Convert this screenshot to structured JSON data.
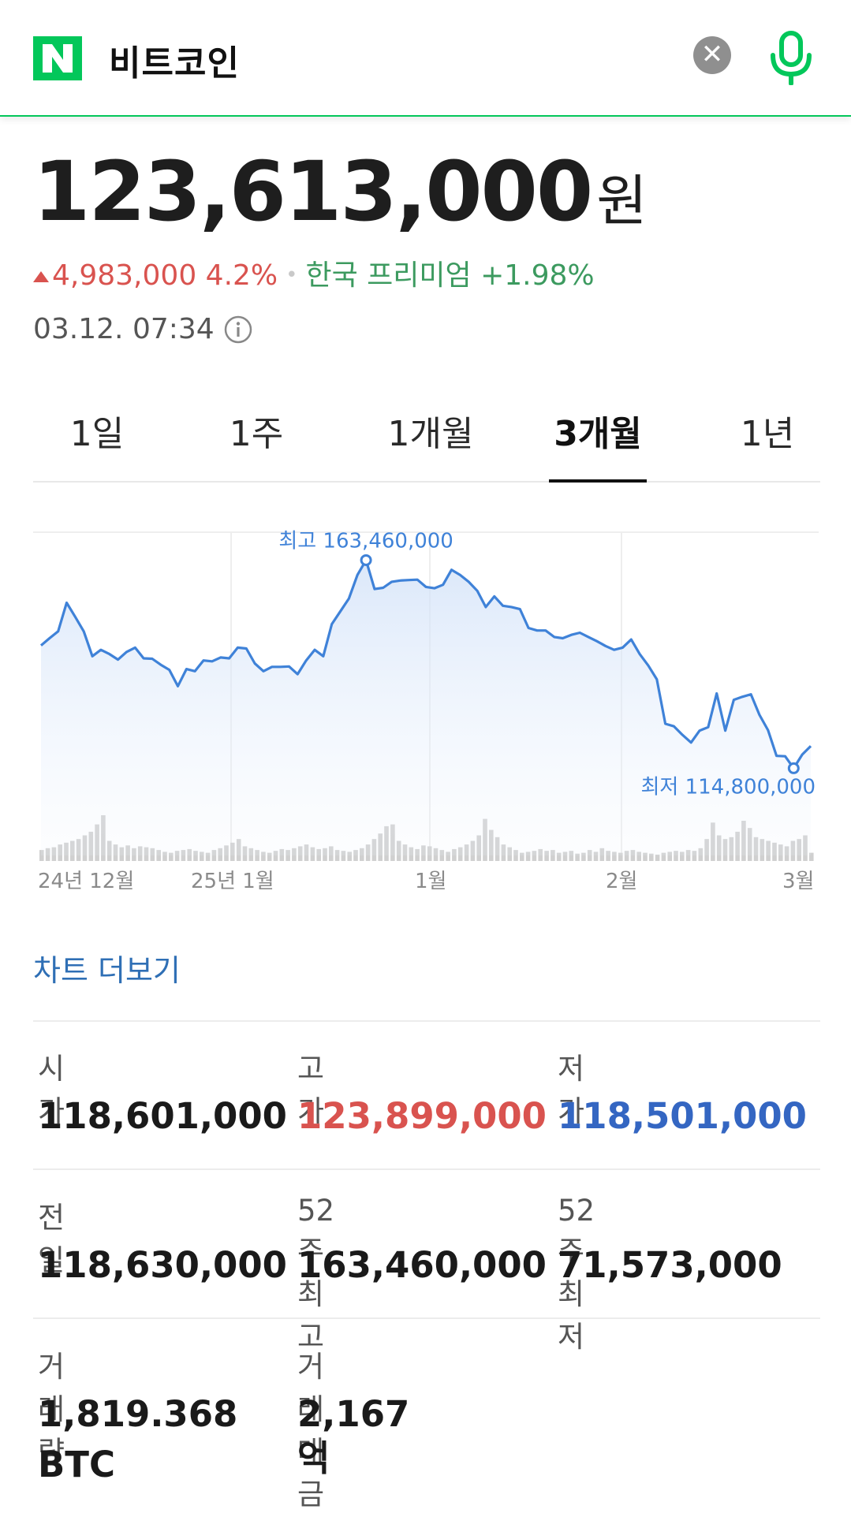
{
  "search": {
    "query": "비트코인",
    "clear_glyph": "✕"
  },
  "price": {
    "value": "123,613,000",
    "unit": "원"
  },
  "change": {
    "amount": "4,983,000",
    "percent": "4.2%",
    "separator": "•",
    "premium": "한국 프리미엄 +1.98%"
  },
  "timestamp": "03.12. 07:34",
  "tabs": [
    "1일",
    "1주",
    "1개월",
    "3개월",
    "1년"
  ],
  "active_tab": "3개월",
  "chart_data": {
    "type": "area",
    "x_tick_labels": [
      "24년 12월",
      "25년 1월",
      "1월",
      "2월",
      "3월"
    ],
    "high_label": "최고 163,460,000",
    "low_label": "최저 114,800,000",
    "high": 163460000,
    "low": 114800000,
    "ylim": [
      111000000,
      170000000
    ],
    "price_series": [
      143500000,
      145200000,
      146800000,
      153500000,
      150200000,
      146800000,
      141000000,
      142500000,
      141500000,
      140200000,
      142000000,
      143000000,
      140500000,
      140400000,
      139000000,
      137800000,
      134000000,
      138000000,
      137500000,
      140000000,
      139800000,
      140700000,
      140500000,
      143000000,
      142800000,
      139300000,
      137500000,
      138500000,
      138500000,
      138600000,
      136800000,
      140000000,
      142500000,
      141000000,
      148500000,
      151500000,
      154500000,
      160000000,
      163460000,
      156700000,
      157000000,
      158400000,
      158700000,
      158800000,
      158900000,
      157200000,
      156900000,
      157700000,
      161200000,
      160000000,
      158400000,
      156300000,
      152500000,
      155000000,
      152800000,
      152500000,
      152000000,
      147600000,
      147000000,
      147000000,
      145500000,
      145200000,
      146000000,
      146500000,
      145500000,
      144500000,
      143400000,
      142500000,
      143000000,
      144900000,
      141500000,
      138800000,
      135600000,
      125200000,
      124600000,
      122600000,
      120800000,
      123600000,
      124400000,
      132300000,
      123600000,
      130800000,
      131500000,
      132100000,
      127300000,
      123700000,
      117700000,
      117600000,
      114800000,
      118000000,
      120000000
    ],
    "volume_series": [
      12,
      14,
      15,
      18,
      20,
      22,
      24,
      28,
      32,
      40,
      50,
      22,
      18,
      15,
      17,
      14,
      16,
      15,
      14,
      12,
      10,
      9,
      11,
      12,
      13,
      11,
      10,
      9,
      12,
      14,
      17,
      20,
      24,
      16,
      14,
      12,
      10,
      9,
      11,
      13,
      12,
      14,
      16,
      18,
      15,
      13,
      14,
      16,
      12,
      11,
      10,
      12,
      14,
      18,
      24,
      30,
      38,
      40,
      22,
      18,
      15,
      13,
      17,
      16,
      14,
      12,
      10,
      13,
      15,
      18,
      22,
      28,
      46,
      34,
      26,
      18,
      15,
      12,
      9,
      10,
      11,
      13,
      11,
      12,
      9,
      10,
      11,
      8,
      9,
      12,
      10,
      14,
      11,
      10,
      9,
      11,
      12,
      10,
      9,
      8,
      7,
      9,
      10,
      11,
      10,
      12,
      11,
      14,
      24,
      42,
      28,
      24,
      26,
      32,
      44,
      36,
      26,
      24,
      22,
      20,
      18,
      16,
      22,
      24,
      28,
      9
    ]
  },
  "chart_more_label": "차트 더보기",
  "stats": [
    {
      "label": "시가",
      "value": "118,601,000",
      "tone": "normal"
    },
    {
      "label": "고가",
      "value": "123,899,000",
      "tone": "up"
    },
    {
      "label": "저가",
      "value": "118,501,000",
      "tone": "down"
    },
    {
      "label": "전일",
      "value": "118,630,000",
      "tone": "normal"
    },
    {
      "label": "52주 최고",
      "value": "163,460,000",
      "tone": "normal"
    },
    {
      "label": "52주 최저",
      "value": "71,573,000",
      "tone": "normal"
    },
    {
      "label": "거래량",
      "value": "1,819.368",
      "value2": "BTC",
      "tone": "normal"
    },
    {
      "label": "거래대금",
      "value": "2,167억",
      "tone": "normal"
    }
  ],
  "colors": {
    "brand_green": "#03c75a",
    "up_red": "#d9534f",
    "down_blue": "#3466c2",
    "chart_line": "#3f82d8",
    "link_blue": "#2f6fb5"
  }
}
